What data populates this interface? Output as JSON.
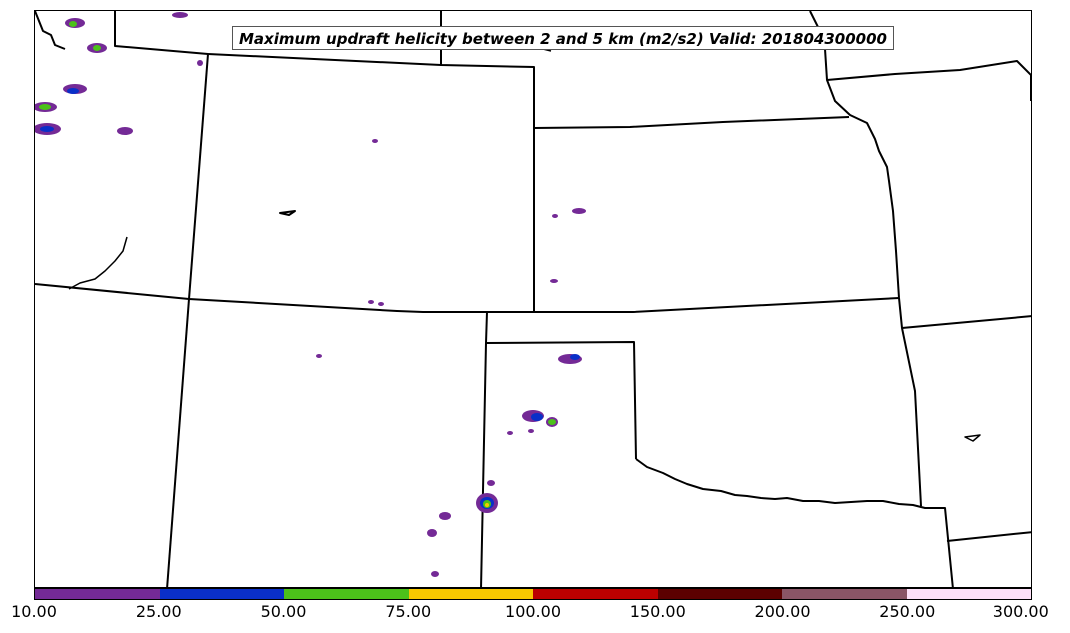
{
  "title": "Maximum updraft helicity between 2 and 5 km (m2/s2) Valid: 201804300000",
  "colorbar": {
    "ticks": [
      "10.00",
      "25.00",
      "50.00",
      "75.00",
      "100.00",
      "150.00",
      "200.00",
      "250.00",
      "300.00"
    ],
    "colors": [
      "#742a96",
      "#0a2fc8",
      "#4cc11a",
      "#f7c800",
      "#bb0000",
      "#5c0000",
      "#8a5566",
      "#fde0f8"
    ]
  },
  "map": {
    "background": "#ffffff",
    "border_color": "#000000"
  }
}
